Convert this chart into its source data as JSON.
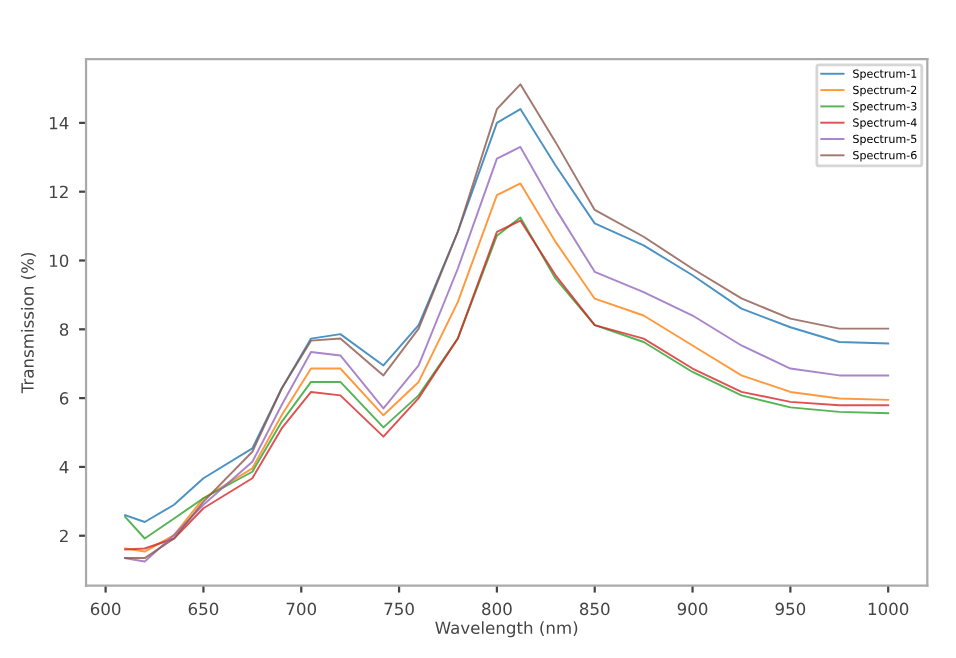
{
  "chart_data": {
    "type": "line",
    "xlabel": "Wavelength (nm)",
    "ylabel": "Transmission (%)",
    "x": [
      610,
      620,
      635,
      650,
      675,
      690,
      705,
      720,
      742,
      760,
      780,
      800,
      812,
      830,
      850,
      875,
      900,
      925,
      950,
      975,
      1000
    ],
    "series": [
      {
        "name": "Spectrum-1",
        "color": "#1f77b4",
        "values": [
          2.6,
          2.4,
          2.9,
          3.67,
          4.54,
          6.28,
          7.73,
          7.86,
          6.95,
          8.12,
          10.83,
          14.0,
          14.4,
          12.76,
          11.08,
          10.44,
          9.57,
          8.6,
          8.06,
          7.63,
          7.59
        ]
      },
      {
        "name": "Spectrum-2",
        "color": "#ff7f0e",
        "values": [
          1.63,
          1.54,
          2.02,
          3.09,
          3.96,
          5.5,
          6.86,
          6.86,
          5.5,
          6.47,
          8.79,
          11.9,
          12.24,
          10.54,
          8.89,
          8.4,
          7.53,
          6.66,
          6.18,
          5.99,
          5.95
        ]
      },
      {
        "name": "Spectrum-3",
        "color": "#2ca02c",
        "values": [
          2.55,
          1.92,
          2.5,
          3.09,
          3.86,
          5.31,
          6.47,
          6.47,
          5.15,
          6.08,
          7.73,
          10.72,
          11.25,
          9.47,
          8.12,
          7.63,
          6.76,
          6.08,
          5.73,
          5.6,
          5.56
        ]
      },
      {
        "name": "Spectrum-4",
        "color": "#d62728",
        "values": [
          1.6,
          1.63,
          1.92,
          2.8,
          3.67,
          5.12,
          6.18,
          6.08,
          4.88,
          6.0,
          7.73,
          10.83,
          11.16,
          9.57,
          8.12,
          7.73,
          6.86,
          6.18,
          5.89,
          5.79,
          5.79
        ]
      },
      {
        "name": "Spectrum-5",
        "color": "#9467bd",
        "values": [
          1.35,
          1.25,
          2.02,
          2.9,
          4.15,
          5.8,
          7.34,
          7.24,
          5.7,
          6.95,
          9.76,
          12.96,
          13.3,
          11.5,
          9.67,
          9.08,
          8.4,
          7.53,
          6.86,
          6.66,
          6.66
        ]
      },
      {
        "name": "Spectrum-6",
        "color": "#8c564b",
        "values": [
          1.35,
          1.35,
          1.92,
          2.99,
          4.44,
          6.28,
          7.67,
          7.73,
          6.66,
          8.02,
          10.83,
          14.4,
          15.12,
          13.44,
          11.47,
          10.69,
          9.76,
          8.9,
          8.31,
          8.02,
          8.02
        ]
      }
    ],
    "xlim": [
      590,
      1020
    ],
    "ylim": [
      0.55,
      15.85
    ],
    "xticks": [
      600,
      650,
      700,
      750,
      800,
      850,
      900,
      950,
      1000
    ],
    "yticks": [
      2,
      4,
      6,
      8,
      10,
      12,
      14
    ],
    "grid": false,
    "legend": "top right",
    "marker": "none",
    "line_style": "solid"
  }
}
